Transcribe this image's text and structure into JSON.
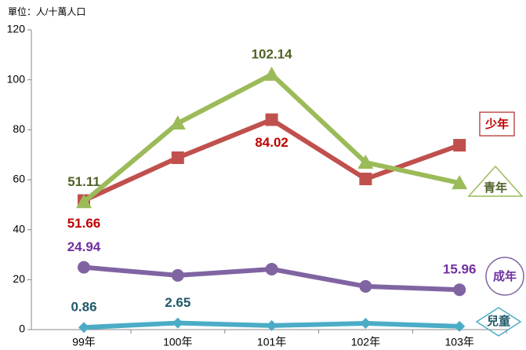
{
  "chart_data": {
    "type": "line",
    "unit_label": "單位：人/十萬人口",
    "categories": [
      "99年",
      "100年",
      "101年",
      "102年",
      "103年"
    ],
    "ylim": [
      0,
      120
    ],
    "yticks": [
      0,
      20,
      40,
      60,
      80,
      100,
      120
    ],
    "series": [
      {
        "name": "少年",
        "color": "#c0504d",
        "label_color": "#c00000",
        "marker": "square",
        "values": [
          51.66,
          68.8,
          84.02,
          60.3,
          73.8
        ],
        "value_labels": [
          "51.66",
          null,
          "84.02",
          null,
          null
        ]
      },
      {
        "name": "青年",
        "color": "#9bbb59",
        "label_color": "#4f6228",
        "marker": "triangle",
        "values": [
          51.11,
          82.6,
          102.14,
          66.9,
          58.7
        ],
        "value_labels": [
          "51.11",
          null,
          "102.14",
          null,
          null
        ]
      },
      {
        "name": "成年",
        "color": "#8064a2",
        "label_color": "#7030a0",
        "marker": "circle",
        "values": [
          24.94,
          21.7,
          24.2,
          17.3,
          15.96
        ],
        "value_labels": [
          "24.94",
          null,
          null,
          null,
          "15.96"
        ]
      },
      {
        "name": "兒童",
        "color": "#4bacc6",
        "label_color": "#215968",
        "marker": "diamond",
        "values": [
          0.86,
          2.65,
          1.6,
          2.5,
          1.3
        ],
        "value_labels": [
          "0.86",
          "2.65",
          null,
          null,
          null
        ]
      }
    ]
  }
}
